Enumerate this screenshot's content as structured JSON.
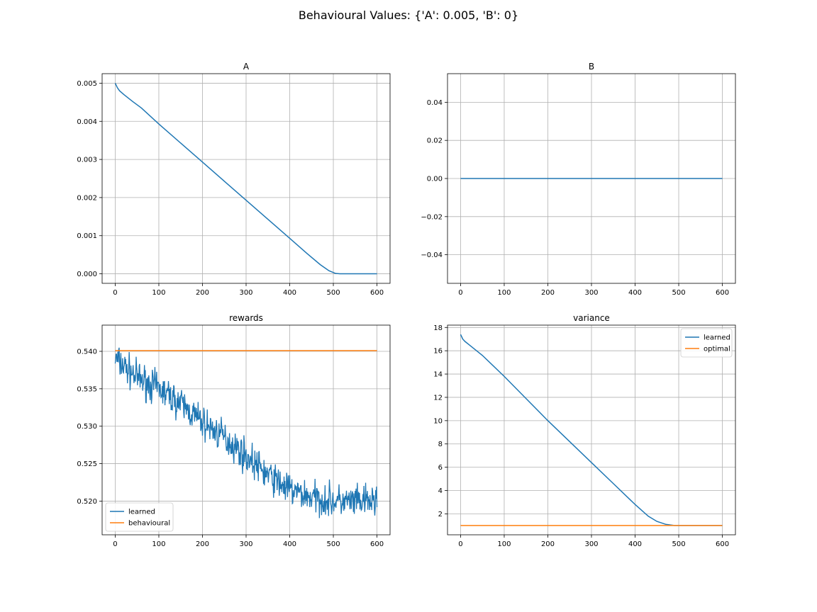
{
  "figure": {
    "title": "Behavioural Values: {'A': 0.005, 'B': 0}",
    "colors": {
      "blue": "#1f77b4",
      "orange": "#ff7f0e",
      "grid": "#b0b0b0",
      "axis": "#000000"
    }
  },
  "chart_data": [
    {
      "type": "line",
      "title": "A",
      "xlabel": "",
      "ylabel": "",
      "xlim": [
        -30,
        630
      ],
      "ylim": [
        -0.00025,
        0.00525
      ],
      "xticks": [
        0,
        100,
        200,
        300,
        400,
        500,
        600
      ],
      "yticks": [
        0.0,
        0.001,
        0.002,
        0.003,
        0.004,
        0.005
      ],
      "ytick_labels": [
        "0.000",
        "0.001",
        "0.002",
        "0.003",
        "0.004",
        "0.005"
      ],
      "grid": true,
      "legend": null,
      "series": [
        {
          "color": "#1f77b4",
          "x": [
            0,
            5,
            10,
            20,
            40,
            60,
            100,
            150,
            200,
            250,
            300,
            350,
            400,
            440,
            470,
            490,
            505,
            515,
            520,
            530,
            600
          ],
          "y": [
            0.005,
            0.00488,
            0.0048,
            0.0047,
            0.00452,
            0.00435,
            0.00393,
            0.00343,
            0.00293,
            0.00243,
            0.00193,
            0.00143,
            0.00093,
            0.00053,
            0.00024,
            8e-05,
            1e-05,
            0.0,
            0.0,
            0.0,
            0.0
          ]
        }
      ]
    },
    {
      "type": "line",
      "title": "B",
      "xlabel": "",
      "ylabel": "",
      "xlim": [
        -30,
        630
      ],
      "ylim": [
        -0.055,
        0.055
      ],
      "xticks": [
        0,
        100,
        200,
        300,
        400,
        500,
        600
      ],
      "yticks": [
        -0.04,
        -0.02,
        0.0,
        0.02,
        0.04
      ],
      "ytick_labels": [
        "−0.04",
        "−0.02",
        "0.00",
        "0.02",
        "0.04"
      ],
      "grid": true,
      "legend": null,
      "series": [
        {
          "color": "#1f77b4",
          "x": [
            0,
            600
          ],
          "y": [
            0,
            0
          ]
        }
      ]
    },
    {
      "type": "line",
      "title": "rewards",
      "xlabel": "",
      "ylabel": "",
      "xlim": [
        -30,
        630
      ],
      "ylim": [
        0.5155,
        0.5435
      ],
      "xticks": [
        0,
        100,
        200,
        300,
        400,
        500,
        600
      ],
      "yticks": [
        0.52,
        0.525,
        0.53,
        0.535,
        0.54
      ],
      "ytick_labels": [
        "0.520",
        "0.525",
        "0.530",
        "0.535",
        "0.540"
      ],
      "grid": true,
      "legend": "lower-left",
      "series": [
        {
          "name": "learned",
          "color": "#1f77b4",
          "noisy": true,
          "noise_amp": 0.0018,
          "seed": 7,
          "x": [
            0,
            10,
            50,
            100,
            150,
            200,
            250,
            300,
            350,
            400,
            450,
            500,
            550,
            600
          ],
          "y": [
            0.539,
            0.5385,
            0.5365,
            0.535,
            0.533,
            0.5305,
            0.5285,
            0.526,
            0.5235,
            0.5215,
            0.5205,
            0.52,
            0.5198,
            0.52
          ]
        },
        {
          "name": "behavioural",
          "color": "#ff7f0e",
          "x": [
            0,
            600
          ],
          "y": [
            0.5401,
            0.5401
          ]
        }
      ]
    },
    {
      "type": "line",
      "title": "variance",
      "xlabel": "",
      "ylabel": "",
      "xlim": [
        -30,
        630
      ],
      "ylim": [
        0.2,
        18.2
      ],
      "xticks": [
        0,
        100,
        200,
        300,
        400,
        500,
        600
      ],
      "yticks": [
        2,
        4,
        6,
        8,
        10,
        12,
        14,
        16,
        18
      ],
      "ytick_labels": [
        "2",
        "4",
        "6",
        "8",
        "10",
        "12",
        "14",
        "16",
        "18"
      ],
      "grid": true,
      "legend": "upper-right",
      "series": [
        {
          "name": "learned",
          "color": "#1f77b4",
          "x": [
            0,
            5,
            10,
            20,
            50,
            100,
            150,
            200,
            250,
            300,
            350,
            400,
            430,
            450,
            470,
            490,
            510,
            530,
            600
          ],
          "y": [
            17.4,
            17.0,
            16.8,
            16.5,
            15.6,
            13.8,
            11.9,
            10.0,
            8.2,
            6.4,
            4.6,
            2.8,
            1.8,
            1.35,
            1.1,
            1.0,
            1.0,
            1.0,
            1.0
          ]
        },
        {
          "name": "optimal",
          "color": "#ff7f0e",
          "x": [
            0,
            600
          ],
          "y": [
            1.0,
            1.0
          ]
        }
      ]
    }
  ]
}
